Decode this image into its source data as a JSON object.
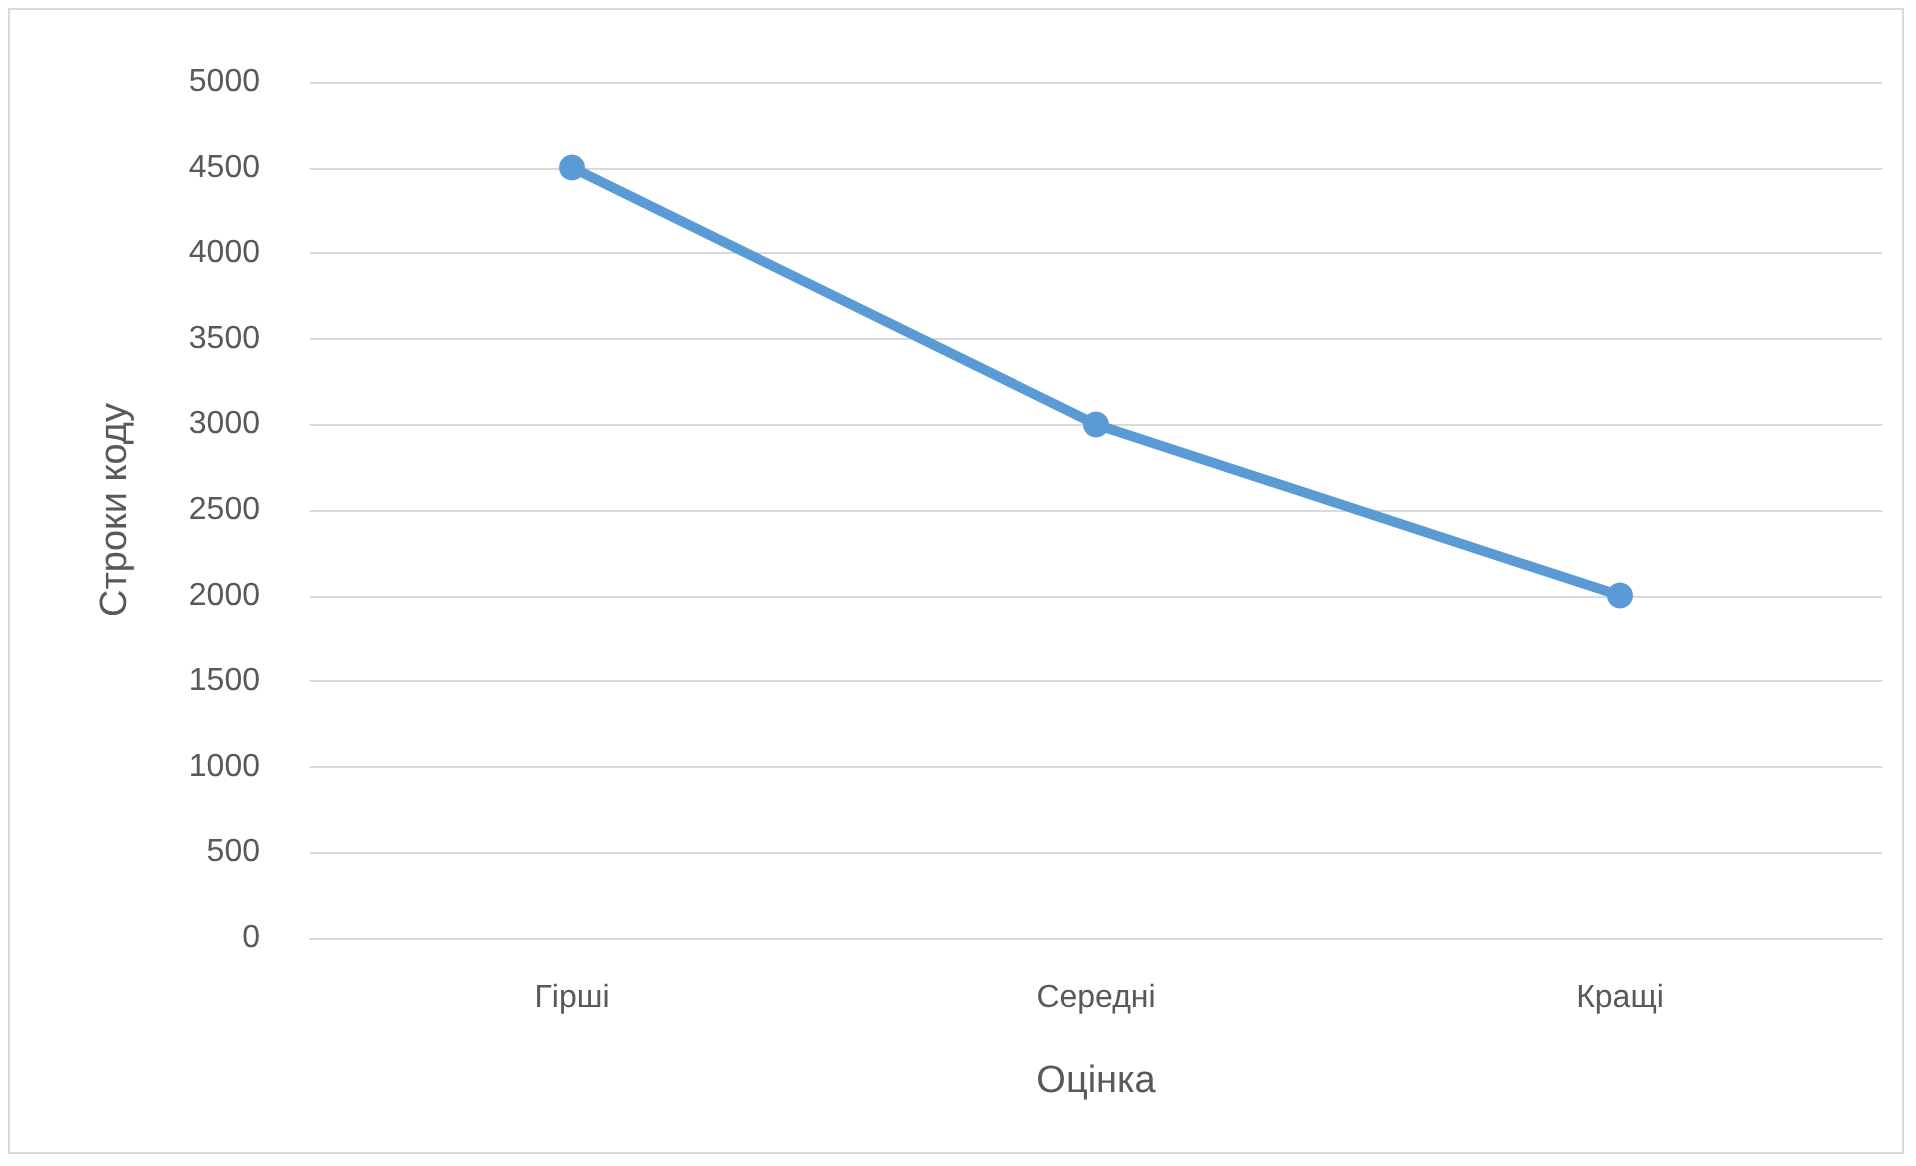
{
  "chart_data": {
    "type": "line",
    "xlabel": "Оцінка",
    "ylabel": "Строки коду",
    "categories": [
      "Гірші",
      "Середні",
      "Кращі"
    ],
    "series": [
      {
        "color": "#5b9bd5",
        "values": [
          4500,
          3000,
          2000
        ]
      }
    ],
    "ylim": [
      0,
      5000
    ],
    "yticks": [
      0,
      500,
      1000,
      1500,
      2000,
      2500,
      3000,
      3500,
      4000,
      4500,
      5000
    ],
    "grid": "y",
    "marker": "circle",
    "line_style": "solid"
  }
}
